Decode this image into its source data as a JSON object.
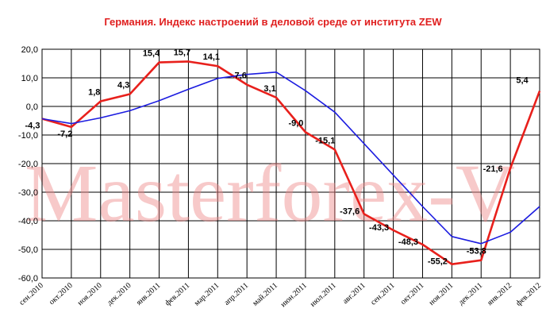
{
  "chart_data": {
    "type": "line",
    "title": "Германия. Индекс настроений в деловой среде от института ZEW",
    "categories": [
      "сен.2010",
      "окт.2010",
      "ноя.2010",
      "дек.2010",
      "янв.2011",
      "фев.2011",
      "мар.2011",
      "апр.2011",
      "май.2011",
      "июн.2011",
      "июл.2011",
      "авг.2011",
      "сен.2011",
      "окт.2011",
      "ноя.2011",
      "дек.2011",
      "янв.2012",
      "фев.2012"
    ],
    "ylim": [
      -60,
      20
    ],
    "yticks": [
      "20,0",
      "10,0",
      "0,0",
      "-10,0",
      "-20,0",
      "-30,0",
      "-40,0",
      "-50,0",
      "-60,0"
    ],
    "grid": true,
    "series": [
      {
        "color": "#e8201c",
        "values": [
          -4.3,
          -7.2,
          1.8,
          4.3,
          15.4,
          15.7,
          14.1,
          7.6,
          3.1,
          -9.0,
          -15.1,
          -37.6,
          -43.3,
          -48.3,
          -55.2,
          -53.8,
          -21.6,
          5.4
        ],
        "labels": [
          "-4,3",
          "-7,2",
          "1,8",
          "4,3",
          "15,4",
          "15,7",
          "14,1",
          "7,6",
          "3,1",
          "-9,0",
          "-15,1",
          "-37,6",
          "-43,3",
          "-48,3",
          "-55,2",
          "-53,8",
          "-21,6",
          "5,4"
        ]
      },
      {
        "color": "#1c1ce0",
        "values": [
          -4.3,
          -6.0,
          -4.0,
          -1.5,
          2.0,
          6.0,
          9.8,
          11.2,
          12.0,
          5.5,
          -2.0,
          -13.0,
          -24.0,
          -35.0,
          -45.5,
          -48.0,
          -44.0,
          -35.0
        ],
        "labels": []
      }
    ]
  },
  "watermark": "Masterforex-V"
}
